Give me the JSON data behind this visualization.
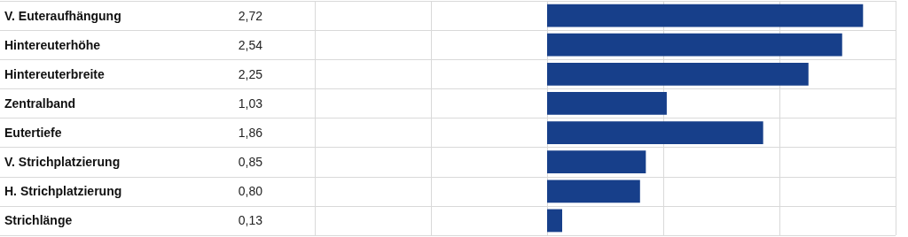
{
  "chart_data": {
    "type": "bar",
    "orientation": "horizontal",
    "categories": [
      "V. Euteraufhängung",
      "Hintereuterhöhe",
      "Hintereuterbreite",
      "Zentralband",
      "Eutertiefe",
      "V. Strichplatzierung",
      "H. Strichplatzierung",
      "Strichlänge"
    ],
    "values": [
      2.72,
      2.54,
      2.25,
      1.03,
      1.86,
      0.85,
      0.8,
      0.13
    ],
    "value_labels": [
      "2,72",
      "2,54",
      "2,25",
      "1,03",
      "1,86",
      "0,85",
      "0,80",
      "0,13"
    ],
    "color": "#173f8a",
    "xlim": [
      -2,
      3
    ],
    "xticks": [
      {
        "value": -2,
        "label": null
      },
      {
        "value": -1,
        "label": null
      },
      {
        "value": 0,
        "label": null
      },
      {
        "value": 1,
        "label": null
      },
      {
        "value": 2,
        "label": null
      },
      {
        "value": 3,
        "label": null
      }
    ],
    "tick_labels": "y",
    "grid": "x"
  }
}
